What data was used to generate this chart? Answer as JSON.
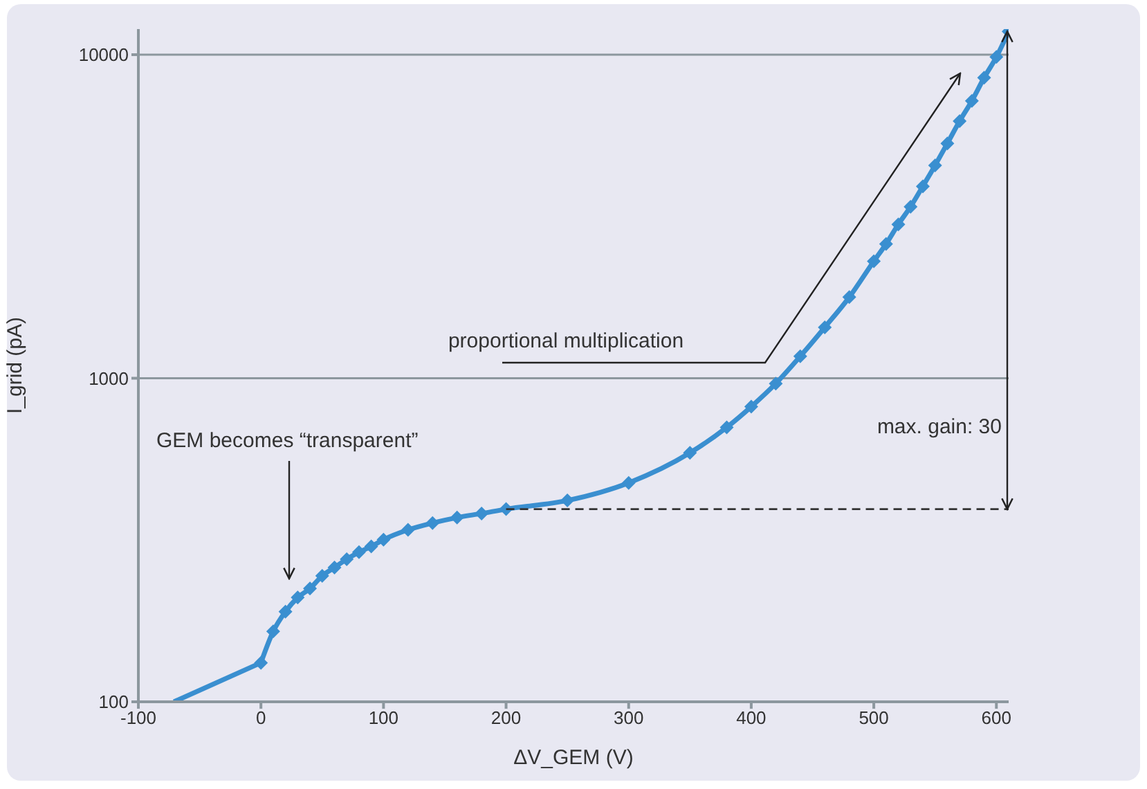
{
  "chart_data": {
    "type": "line",
    "xlabel": "ΔV_GEM (V)",
    "ylabel": "I_grid (pA)",
    "series": [
      {
        "color": "#3a8fd0",
        "x": [
          -71,
          0
        ],
        "values": [
          100,
          132
        ]
      },
      {
        "color": "#3a8fd0",
        "marker": "diamond",
        "x": [
          0,
          10,
          20,
          30,
          40,
          50,
          60,
          70,
          80,
          90,
          100,
          120,
          140,
          160,
          180,
          200,
          250,
          300,
          350,
          380,
          400,
          420,
          440,
          460,
          480,
          500,
          510,
          520,
          530,
          540,
          550,
          560,
          570,
          580,
          590,
          600,
          610
        ],
        "values": [
          132,
          165,
          190,
          210,
          224,
          245,
          260,
          276,
          290,
          302,
          317,
          340,
          357,
          371,
          382,
          394,
          419,
          475,
          588,
          705,
          817,
          963,
          1169,
          1437,
          1781,
          2300,
          2600,
          2990,
          3390,
          3920,
          4550,
          5320,
          6230,
          7200,
          8490,
          9840,
          11800
        ]
      }
    ],
    "xlim": [
      -100,
      610
    ],
    "xticks": [
      -100,
      0,
      100,
      200,
      300,
      400,
      500,
      600
    ],
    "ylim": [
      100,
      12000
    ],
    "yticks": [
      100,
      1000,
      10000
    ],
    "log": "y",
    "grid": "y",
    "line_style": "solid",
    "ref_lines": [
      {
        "axis": "y",
        "value": 394,
        "line_style": "dashed",
        "color": "#333333"
      }
    ],
    "annotations": [
      "proportional multiplication",
      "GEM becomes “transparent”",
      "max. gain: 30"
    ]
  }
}
